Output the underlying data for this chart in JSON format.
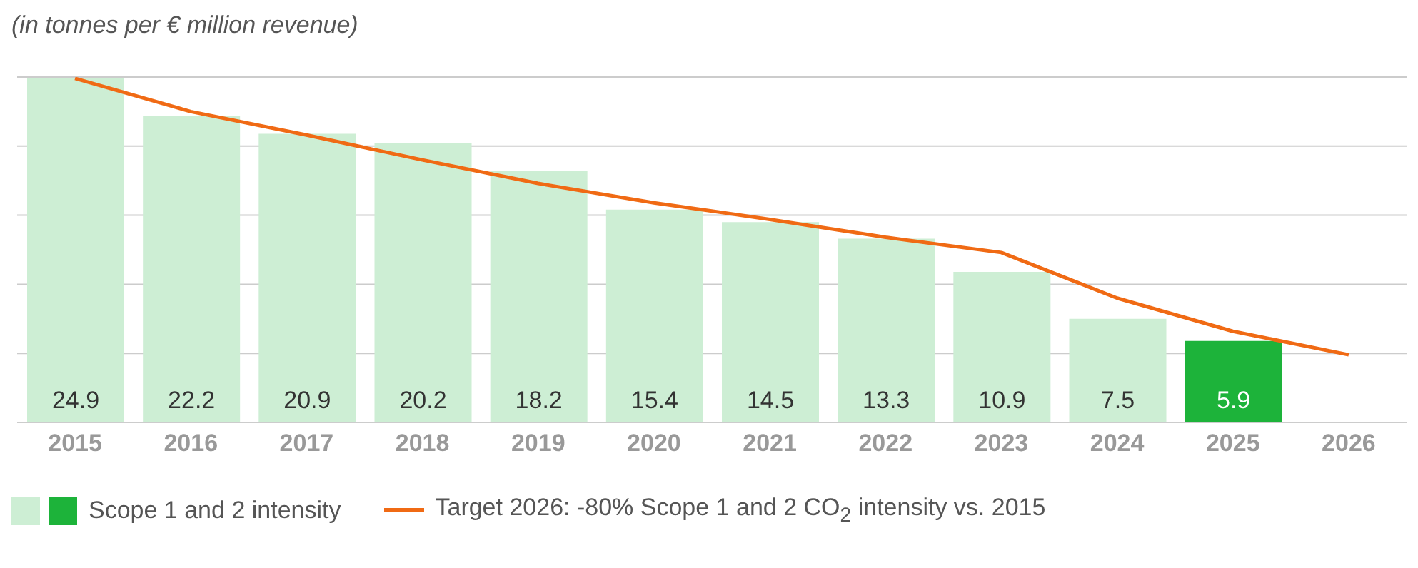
{
  "chart_data": {
    "type": "bar",
    "ylabel": "(in tonnes per € million revenue)",
    "categories": [
      "2015",
      "2016",
      "2017",
      "2018",
      "2019",
      "2020",
      "2021",
      "2022",
      "2023",
      "2024",
      "2025",
      "2026"
    ],
    "series": [
      {
        "name": "Scope 1 and 2 intensity",
        "value_labels": [
          "24.9",
          "22.2",
          "20.9",
          "20.2",
          "18.2",
          "15.4",
          "14.5",
          "13.3",
          "10.9",
          "7.5",
          "5.9",
          null
        ],
        "colors": [
          "#cdeed4",
          "#cdeed4",
          "#cdeed4",
          "#cdeed4",
          "#cdeed4",
          "#cdeed4",
          "#cdeed4",
          "#cdeed4",
          "#cdeed4",
          "#cdeed4",
          "#1db33a",
          "#cdeed4"
        ],
        "values": [
          24.9,
          22.2,
          20.9,
          20.2,
          18.2,
          15.4,
          14.5,
          13.3,
          10.9,
          7.5,
          5.9,
          null
        ]
      },
      {
        "name": "Target 2026: -80% Scope 1 and 2 CO$_{2}$ intensity vs. 2015",
        "type": "line",
        "color": "#f06a14",
        "values": [
          24.9,
          22.5,
          20.8,
          19.0,
          17.3,
          15.9,
          14.7,
          13.4,
          12.3,
          9.0,
          6.6,
          4.9
        ]
      }
    ],
    "ylim": [
      0,
      25
    ],
    "yticks": [
      {
        "value": 0,
        "label": null
      },
      {
        "value": 5,
        "label": null
      },
      {
        "value": 10,
        "label": null
      },
      {
        "value": 15,
        "label": null
      },
      {
        "value": 20,
        "label": null
      },
      {
        "value": 25,
        "label": null
      }
    ],
    "grid": "y",
    "legend": "bottom left",
    "tick_labels": "x",
    "marker": "none",
    "line_style": "solid"
  }
}
